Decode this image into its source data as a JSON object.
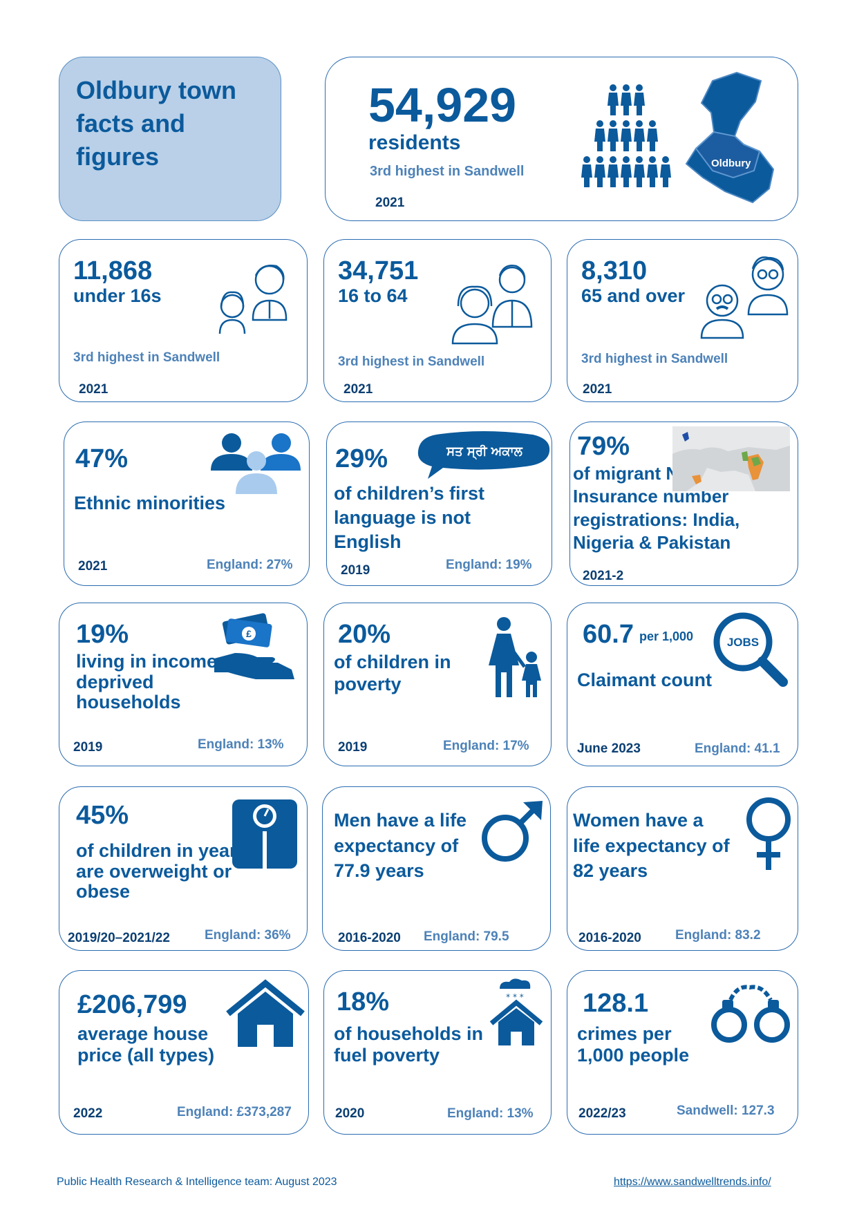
{
  "title": "Oldbury town facts and figures",
  "population": {
    "value": "54,929",
    "label": "residents",
    "rank": "3rd highest in Sandwell",
    "year": "2021",
    "map_label": "Oldbury"
  },
  "cards": [
    {
      "id": "under16",
      "value": "11,868",
      "label": "under 16s",
      "rank": "3rd highest in Sandwell",
      "year": "2021",
      "icon": "children-icon"
    },
    {
      "id": "age16to64",
      "value": "34,751",
      "label": "16 to 64",
      "rank": "3rd highest in Sandwell",
      "year": "2021",
      "icon": "adults-icon"
    },
    {
      "id": "age65plus",
      "value": "8,310",
      "label": "65 and over",
      "rank": "3rd highest in Sandwell",
      "year": "2021",
      "icon": "elderly-icon"
    },
    {
      "id": "ethnic",
      "value": "47%",
      "label": "Ethnic minorities",
      "year": "2021",
      "england": "England: 27%",
      "icon": "people-group-icon"
    },
    {
      "id": "language",
      "value": "29%",
      "label": "of children’s first language is not English",
      "year": "2019",
      "england": "England: 19%",
      "icon": "speech-bubble-icon",
      "bubble_text": "ਸਤ ਸ੍ਰੀ ਅਕਾਲ"
    },
    {
      "id": "migrant",
      "value": "79%",
      "label": "of migrant National Insurance number registrations: India, Nigeria & Pakistan",
      "year": "2021-2",
      "icon": "world-map-icon"
    },
    {
      "id": "income",
      "value": "19%",
      "label": "living in income deprived households",
      "year": "2019",
      "england": "England: 13%",
      "icon": "money-hand-icon"
    },
    {
      "id": "childpoverty",
      "value": "20%",
      "label": "of children in poverty",
      "year": "2019",
      "england": "England: 17%",
      "icon": "parent-child-icon"
    },
    {
      "id": "claimant",
      "value": "60.7",
      "unit": "per 1,000",
      "label": "Claimant count",
      "year": "June 2023",
      "england": "England: 41.1",
      "icon": "jobs-search-icon",
      "icon_text": "JOBS"
    },
    {
      "id": "overweight",
      "value": "45%",
      "label": "of children in year 6 are overweight or obese",
      "year": "2019/20–2021/22",
      "england": "England: 36%",
      "icon": "scales-icon"
    },
    {
      "id": "menlife",
      "label": "Men have a life expectancy of 77.9 years",
      "year": "2016-2020",
      "england": "England: 79.5",
      "icon": "male-symbol-icon"
    },
    {
      "id": "womenlife",
      "label": "Women have a life expectancy of 82 years",
      "year": "2016-2020",
      "england": "England: 83.2",
      "icon": "female-symbol-icon"
    },
    {
      "id": "house",
      "value": "£206,799",
      "label": "average house price (all types)",
      "year": "2022",
      "england": "England: £373,287",
      "icon": "house-icon"
    },
    {
      "id": "fuel",
      "value": "18%",
      "label": "of households in fuel poverty",
      "year": "2020",
      "england": "England: 13%",
      "icon": "cold-house-icon"
    },
    {
      "id": "crime",
      "value": "128.1",
      "label": "crimes per 1,000 people",
      "year": "2022/23",
      "england": "Sandwell: 127.3",
      "icon": "handcuffs-icon"
    }
  ],
  "footer": {
    "credit": "Public Health Research & Intelligence team: August 2023",
    "url": "https://www.sandwelltrends.info/"
  },
  "colors": {
    "primary": "#0b5a9c",
    "light": "#b9d0e8",
    "accent": "#4d82b8"
  }
}
